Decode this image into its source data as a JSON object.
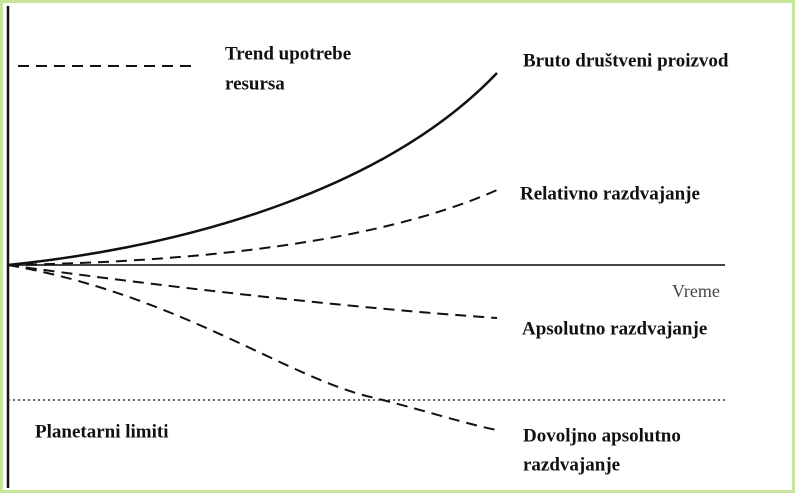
{
  "legend": {
    "lines": [
      "Trend upotrebe",
      "resursa"
    ]
  },
  "axis": {
    "x_label": "Vreme"
  },
  "curves": [
    {
      "label_lines": [
        "Bruto društveni proizvod"
      ]
    },
    {
      "label_lines": [
        "Relativno razdvajanje"
      ]
    },
    {
      "label_lines": [
        "Apsolutno razdvajanje"
      ]
    },
    {
      "label_lines": [
        "Dovoljno apsolutno",
        "razdvajanje"
      ]
    }
  ],
  "limit": {
    "label": "Planetarni limiti"
  }
}
